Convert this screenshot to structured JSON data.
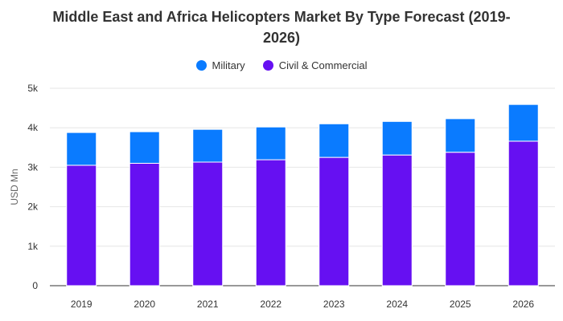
{
  "chart_data": {
    "type": "bar",
    "stacked": true,
    "title": "Middle East and Africa Helicopters Market By Type Forecast (2019-2026)",
    "title_lines": [
      "Middle East and Africa Helicopters Market By Type Forecast (2019-",
      "2026)"
    ],
    "xlabel": "",
    "ylabel": "USD Mn",
    "categories": [
      "2019",
      "2020",
      "2021",
      "2022",
      "2023",
      "2024",
      "2025",
      "2026"
    ],
    "series": [
      {
        "name": "Civil & Commercial",
        "color": "#6610f2",
        "values": [
          3050,
          3100,
          3130,
          3190,
          3250,
          3310,
          3380,
          3660
        ]
      },
      {
        "name": "Military",
        "color": "#0a7bff",
        "values": [
          830,
          800,
          830,
          830,
          850,
          850,
          850,
          930
        ]
      }
    ],
    "legend_order": [
      "Military",
      "Civil & Commercial"
    ],
    "legend_position": "top-center",
    "ylim": [
      0,
      5000
    ],
    "yticks": [
      0,
      1000,
      2000,
      3000,
      4000,
      5000
    ],
    "ytick_labels": [
      "0",
      "1k",
      "2k",
      "3k",
      "4k",
      "5k"
    ],
    "grid": true
  }
}
